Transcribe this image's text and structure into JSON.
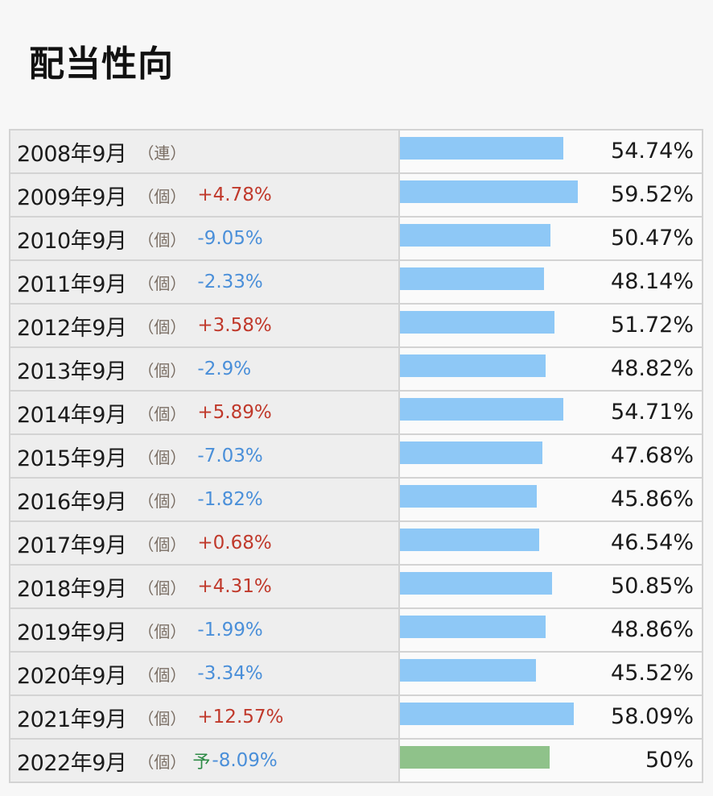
{
  "title": "配当性向",
  "colors": {
    "bar_actual": "#8ec8f6",
    "bar_forecast": "#8fc28a",
    "change_up": "#c0392b",
    "change_down": "#4a8fd9",
    "forecast_mark": "#2e8b46"
  },
  "chart_data": {
    "type": "bar",
    "orientation": "horizontal",
    "title": "配当性向",
    "categories": [
      "2008年9月",
      "2009年9月",
      "2010年9月",
      "2011年9月",
      "2012年9月",
      "2013年9月",
      "2014年9月",
      "2015年9月",
      "2016年9月",
      "2017年9月",
      "2018年9月",
      "2019年9月",
      "2020年9月",
      "2021年9月",
      "2022年9月"
    ],
    "values": [
      54.74,
      59.52,
      50.47,
      48.14,
      51.72,
      48.82,
      54.71,
      47.68,
      45.86,
      46.54,
      50.85,
      48.86,
      45.52,
      58.09,
      50
    ],
    "xlim": [
      0,
      100
    ],
    "rows": [
      {
        "period": "2008年9月",
        "type": "（連）",
        "forecast": "",
        "change": "",
        "direction": "",
        "value": 54.74,
        "value_label": "54.74%"
      },
      {
        "period": "2009年9月",
        "type": "（個）",
        "forecast": "",
        "change": "+4.78%",
        "direction": "up",
        "value": 59.52,
        "value_label": "59.52%"
      },
      {
        "period": "2010年9月",
        "type": "（個）",
        "forecast": "",
        "change": "-9.05%",
        "direction": "down",
        "value": 50.47,
        "value_label": "50.47%"
      },
      {
        "period": "2011年9月",
        "type": "（個）",
        "forecast": "",
        "change": "-2.33%",
        "direction": "down",
        "value": 48.14,
        "value_label": "48.14%"
      },
      {
        "period": "2012年9月",
        "type": "（個）",
        "forecast": "",
        "change": "+3.58%",
        "direction": "up",
        "value": 51.72,
        "value_label": "51.72%"
      },
      {
        "period": "2013年9月",
        "type": "（個）",
        "forecast": "",
        "change": "-2.9%",
        "direction": "down",
        "value": 48.82,
        "value_label": "48.82%"
      },
      {
        "period": "2014年9月",
        "type": "（個）",
        "forecast": "",
        "change": "+5.89%",
        "direction": "up",
        "value": 54.71,
        "value_label": "54.71%"
      },
      {
        "period": "2015年9月",
        "type": "（個）",
        "forecast": "",
        "change": "-7.03%",
        "direction": "down",
        "value": 47.68,
        "value_label": "47.68%"
      },
      {
        "period": "2016年9月",
        "type": "（個）",
        "forecast": "",
        "change": "-1.82%",
        "direction": "down",
        "value": 45.86,
        "value_label": "45.86%"
      },
      {
        "period": "2017年9月",
        "type": "（個）",
        "forecast": "",
        "change": "+0.68%",
        "direction": "up",
        "value": 46.54,
        "value_label": "46.54%"
      },
      {
        "period": "2018年9月",
        "type": "（個）",
        "forecast": "",
        "change": "+4.31%",
        "direction": "up",
        "value": 50.85,
        "value_label": "50.85%"
      },
      {
        "period": "2019年9月",
        "type": "（個）",
        "forecast": "",
        "change": "-1.99%",
        "direction": "down",
        "value": 48.86,
        "value_label": "48.86%"
      },
      {
        "period": "2020年9月",
        "type": "（個）",
        "forecast": "",
        "change": "-3.34%",
        "direction": "down",
        "value": 45.52,
        "value_label": "45.52%"
      },
      {
        "period": "2021年9月",
        "type": "（個）",
        "forecast": "",
        "change": "+12.57%",
        "direction": "up",
        "value": 58.09,
        "value_label": "58.09%"
      },
      {
        "period": "2022年9月",
        "type": "（個）",
        "forecast": "予",
        "change": "-8.09%",
        "direction": "down",
        "value": 50,
        "value_label": "50%"
      }
    ]
  }
}
